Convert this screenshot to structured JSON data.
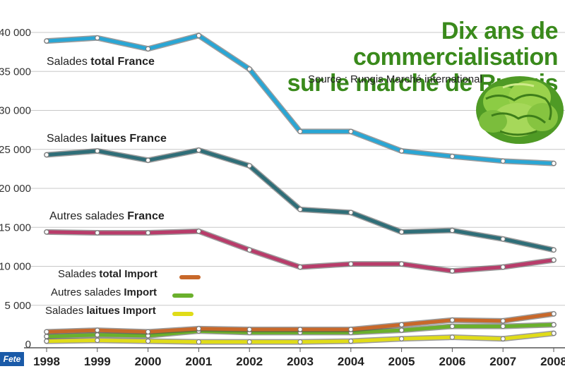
{
  "header": {
    "title_line1": "Dix ans de commercialisation",
    "title_line2": "sur le marché de Rungis",
    "source": "Source : Rungis Marché international"
  },
  "labels": {
    "total_france": {
      "pre": "Salades ",
      "bold": "total France",
      "post": ""
    },
    "laitues_france": {
      "pre": "Salades ",
      "bold": "laitues France",
      "post": ""
    },
    "autres_france": {
      "pre": "Autres salades ",
      "bold": "France",
      "post": ""
    }
  },
  "legend": [
    {
      "pre": "Salades ",
      "bold": "total Import",
      "color": "#c8682a"
    },
    {
      "pre": "Autres salades ",
      "bold": "Import",
      "color": "#6ab02c"
    },
    {
      "pre": "Salades ",
      "bold": "laitues Import",
      "color": "#e0dc18"
    }
  ],
  "logo_text": "Fete",
  "chart_data": {
    "type": "line",
    "title": "Dix ans de commercialisation sur le marché de Rungis",
    "x": [
      1998,
      1999,
      2000,
      2001,
      2002,
      2003,
      2004,
      2005,
      2006,
      2007,
      2008
    ],
    "ylim": [
      0,
      40000
    ],
    "yticks": [
      0,
      5000,
      10000,
      15000,
      20000,
      25000,
      30000,
      35000,
      40000
    ],
    "ytick_labels": [
      "0",
      "5 000",
      "10 000",
      "15 000",
      "20 000",
      "25 000",
      "30 000",
      "35 000",
      "40 000"
    ],
    "xtick_labels": [
      "1998",
      "1999",
      "2000",
      "2001",
      "2002",
      "2003",
      "2004",
      "2005",
      "2006",
      "2007",
      "2008"
    ],
    "grid": true,
    "series": [
      {
        "name": "Salades total France",
        "color": "#2aa6d4",
        "values": [
          38900,
          39300,
          37900,
          39600,
          35300,
          27300,
          27300,
          24800,
          24100,
          23500,
          23200
        ]
      },
      {
        "name": "Salades laitues France",
        "color": "#2f6e78",
        "values": [
          24300,
          24800,
          23600,
          24900,
          22900,
          17300,
          16900,
          14400,
          14600,
          13500,
          12100
        ]
      },
      {
        "name": "Autres salades France",
        "color": "#b83c6a",
        "values": [
          14400,
          14300,
          14300,
          14500,
          12100,
          9900,
          10300,
          10300,
          9400,
          9900,
          10800
        ]
      },
      {
        "name": "Salades total Import",
        "color": "#c8682a",
        "values": [
          1600,
          1800,
          1600,
          2000,
          1900,
          1900,
          1900,
          2500,
          3100,
          3000,
          3900
        ]
      },
      {
        "name": "Autres salades Import",
        "color": "#6ab02c",
        "values": [
          1000,
          1200,
          1100,
          1700,
          1500,
          1500,
          1500,
          1800,
          2300,
          2300,
          2500
        ]
      },
      {
        "name": "Salades laitues Import",
        "color": "#e0dc18",
        "values": [
          400,
          500,
          400,
          300,
          300,
          300,
          400,
          700,
          900,
          700,
          1400
        ]
      }
    ]
  }
}
